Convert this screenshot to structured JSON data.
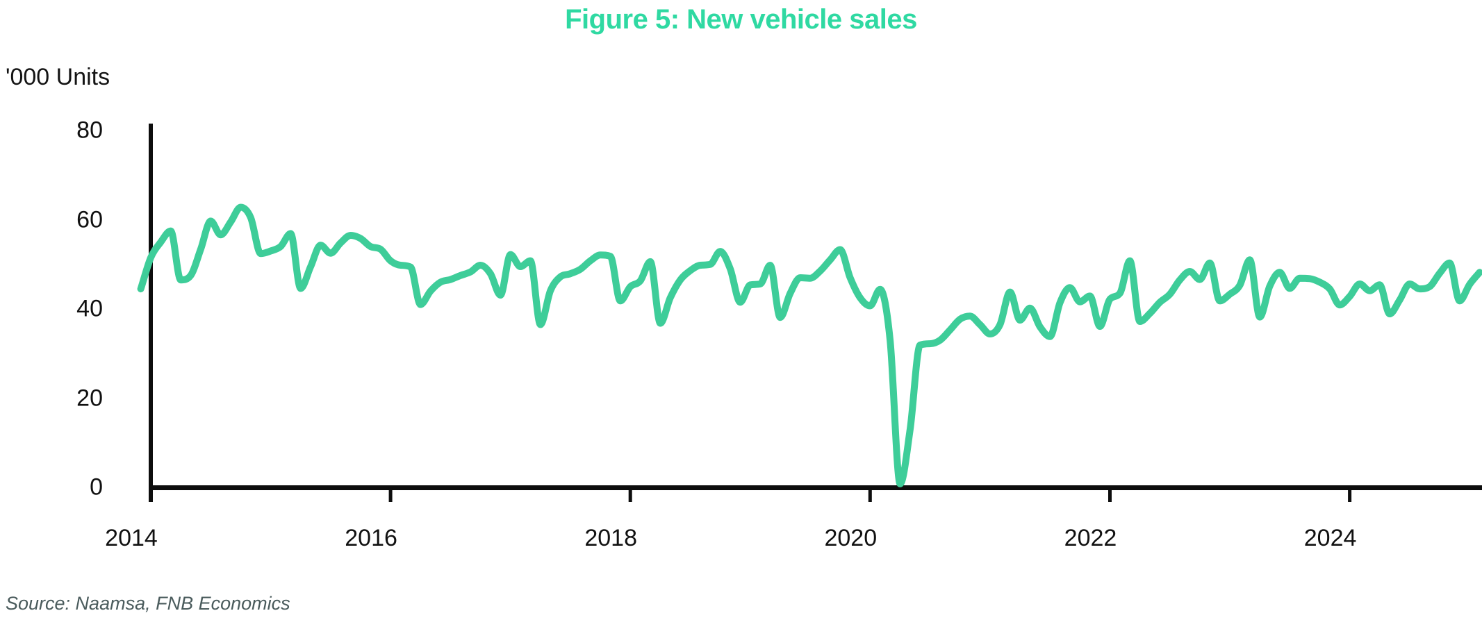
{
  "title": "Figure 5: New vehicle sales",
  "y_axis": {
    "label": "'000 Units",
    "ticks": [
      80,
      60,
      40,
      20,
      0
    ]
  },
  "x_axis": {
    "ticks": [
      2014,
      2016,
      2018,
      2020,
      2022,
      2024
    ]
  },
  "source": "Source: Naamsa, FNB Economics",
  "colors": {
    "title_green": "#2FD9A2",
    "line_green": "#3ECD99",
    "axis_black": "#0D0D0D",
    "source_gray": "#4A5B5C"
  },
  "chart_data": {
    "type": "line",
    "title": "Figure 5: New vehicle sales",
    "ylabel": "'000 Units",
    "unit": "thousand units per month",
    "frequency": "monthly",
    "start": "2013-12",
    "end": "2025-02",
    "ylim": [
      0,
      80
    ],
    "y_ticks": [
      0,
      20,
      40,
      60,
      80
    ],
    "x_tick_years": [
      2014,
      2016,
      2018,
      2020,
      2022,
      2024
    ],
    "grid": false,
    "legend": false,
    "series": [
      {
        "name": "New vehicle sales ('000 units)",
        "values": [
          44.5,
          51.5,
          55.0,
          57.5,
          46.5,
          47.5,
          53.4,
          59.7,
          56.6,
          59.5,
          62.8,
          60.5,
          52.4,
          53.0,
          54.0,
          56.9,
          44.6,
          49.5,
          54.3,
          52.5,
          54.8,
          56.5,
          55.8,
          54.0,
          53.4,
          50.8,
          49.8,
          49.4,
          41.0,
          44.0,
          46.0,
          46.6,
          47.5,
          48.3,
          49.8,
          47.9,
          43.1,
          52.2,
          49.5,
          50.8,
          36.5,
          44.1,
          47.2,
          47.9,
          48.9,
          50.8,
          52.1,
          51.8,
          41.8,
          45.0,
          46.3,
          50.6,
          36.8,
          42.5,
          46.5,
          48.6,
          49.8,
          50.0,
          52.9,
          49.0,
          41.5,
          45.4,
          45.6,
          49.8,
          38.1,
          43.5,
          47.0,
          46.9,
          48.5,
          51.0,
          53.3,
          47.0,
          42.5,
          40.7,
          44.4,
          33.0,
          0.8,
          13.0,
          31.9,
          32.2,
          33.0,
          35.3,
          37.7,
          38.4,
          36.5,
          34.4,
          36.5,
          43.8,
          37.5,
          40.2,
          36.0,
          33.8,
          41.4,
          44.8,
          41.6,
          42.9,
          36.1,
          42.2,
          43.5,
          50.8,
          37.2,
          39.0,
          41.5,
          43.3,
          46.5,
          48.4,
          46.6,
          50.3,
          41.8,
          43.3,
          45.3,
          51.0,
          38.2,
          45.1,
          48.2,
          44.6,
          46.9,
          46.8,
          46.0,
          44.5,
          40.9,
          42.8,
          45.6,
          44.1,
          45.4,
          38.9,
          42.0,
          45.6,
          44.5,
          45.0,
          48.0,
          50.3,
          41.8,
          45.5,
          48.2
        ]
      }
    ],
    "source": "Source: Naamsa, FNB Economics"
  }
}
